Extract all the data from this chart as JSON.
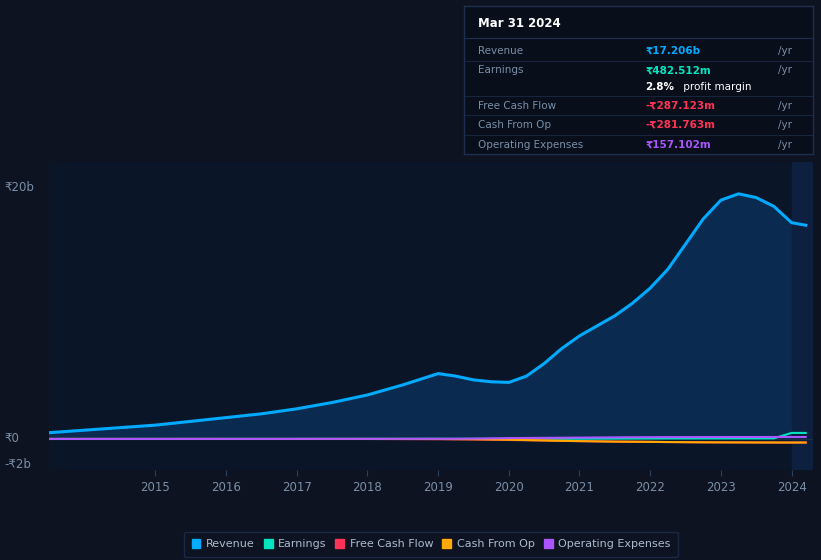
{
  "background_color": "#0d1320",
  "plot_bg_color": "#0a1628",
  "grid_color": "#1a2e4a",
  "years": [
    2013.0,
    2013.5,
    2014.0,
    2014.5,
    2015.0,
    2015.5,
    2016.0,
    2016.5,
    2017.0,
    2017.5,
    2018.0,
    2018.5,
    2019.0,
    2019.25,
    2019.5,
    2019.75,
    2020.0,
    2020.25,
    2020.5,
    2020.75,
    2021.0,
    2021.25,
    2021.5,
    2021.75,
    2022.0,
    2022.25,
    2022.5,
    2022.75,
    2023.0,
    2023.25,
    2023.5,
    2023.75,
    2024.0,
    2024.2
  ],
  "revenue": [
    0.3,
    0.5,
    0.7,
    0.9,
    1.1,
    1.4,
    1.7,
    2.0,
    2.4,
    2.9,
    3.5,
    4.3,
    5.2,
    5.0,
    4.7,
    4.55,
    4.5,
    5.0,
    6.0,
    7.2,
    8.2,
    9.0,
    9.8,
    10.8,
    12.0,
    13.5,
    15.5,
    17.5,
    19.0,
    19.5,
    19.2,
    18.5,
    17.206,
    17.0
  ],
  "earnings": [
    0.001,
    0.001,
    0.002,
    0.002,
    0.003,
    0.003,
    0.004,
    0.005,
    0.006,
    0.007,
    0.008,
    0.01,
    0.012,
    0.011,
    0.01,
    0.009,
    0.008,
    0.01,
    0.012,
    0.015,
    0.02,
    0.025,
    0.03,
    0.035,
    0.04,
    0.042,
    0.044,
    0.046,
    0.047,
    0.048,
    0.0482,
    0.0483,
    0.4825,
    0.48
  ],
  "free_cash_flow": [
    0.001,
    0.001,
    0.001,
    0.001,
    0.001,
    0.001,
    0.0,
    0.0,
    0.0,
    0.0,
    0.0,
    -0.01,
    -0.02,
    -0.03,
    -0.04,
    -0.06,
    -0.08,
    -0.1,
    -0.12,
    -0.15,
    -0.17,
    -0.19,
    -0.21,
    -0.22,
    -0.23,
    -0.245,
    -0.255,
    -0.265,
    -0.27,
    -0.275,
    -0.28,
    -0.285,
    -0.287123,
    -0.287
  ],
  "cash_from_op": [
    0.0,
    0.0,
    0.0,
    0.0,
    0.0,
    0.0,
    0.0,
    0.0,
    0.0,
    0.0,
    0.0,
    0.0,
    0.0,
    -0.01,
    -0.02,
    -0.04,
    -0.06,
    -0.09,
    -0.12,
    -0.15,
    -0.17,
    -0.19,
    -0.21,
    -0.22,
    -0.23,
    -0.245,
    -0.255,
    -0.265,
    -0.27,
    -0.274,
    -0.278,
    -0.28,
    -0.281763,
    -0.282
  ],
  "operating_expenses": [
    0.001,
    0.001,
    0.001,
    0.002,
    0.003,
    0.004,
    0.005,
    0.006,
    0.007,
    0.008,
    0.01,
    0.012,
    0.015,
    0.02,
    0.03,
    0.05,
    0.07,
    0.08,
    0.09,
    0.1,
    0.11,
    0.12,
    0.13,
    0.14,
    0.145,
    0.148,
    0.15,
    0.153,
    0.155,
    0.156,
    0.157,
    0.1571,
    0.157102,
    0.157
  ],
  "revenue_color": "#00aaff",
  "earnings_color": "#00e5c0",
  "fcf_color": "#ff3355",
  "cfo_color": "#ffaa00",
  "opex_color": "#aa55ff",
  "revenue_fill_color": "#0a2a50",
  "highlight_band_color": "#0d2040",
  "ylim": [
    -2.5,
    22.0
  ],
  "xlim_start": 2013.5,
  "xlim_end": 2024.3,
  "xtick_years": [
    2015,
    2016,
    2017,
    2018,
    2019,
    2020,
    2021,
    2022,
    2023,
    2024
  ],
  "infobox": {
    "title": "Mar 31 2024",
    "rows": [
      {
        "label": "Revenue",
        "value": "₹17.206b",
        "unit": "/yr",
        "value_color": "#00aaff",
        "bold": true,
        "separator_above": true
      },
      {
        "label": "Earnings",
        "value": "₹482.512m",
        "unit": "/yr",
        "value_color": "#00e5c0",
        "bold": true,
        "separator_above": true
      },
      {
        "label": "",
        "value": "2.8%",
        "unit": " profit margin",
        "value_color": "white",
        "bold": true,
        "unit_color": "white",
        "separator_above": false
      },
      {
        "label": "Free Cash Flow",
        "value": "-₹287.123m",
        "unit": "/yr",
        "value_color": "#ff3355",
        "bold": true,
        "separator_above": true
      },
      {
        "label": "Cash From Op",
        "value": "-₹281.763m",
        "unit": "/yr",
        "value_color": "#ff3355",
        "bold": true,
        "separator_above": true
      },
      {
        "label": "Operating Expenses",
        "value": "₹157.102m",
        "unit": "/yr",
        "value_color": "#aa55ff",
        "bold": true,
        "separator_above": true
      }
    ]
  },
  "legend_items": [
    {
      "label": "Revenue",
      "color": "#00aaff"
    },
    {
      "label": "Earnings",
      "color": "#00e5c0"
    },
    {
      "label": "Free Cash Flow",
      "color": "#ff3355"
    },
    {
      "label": "Cash From Op",
      "color": "#ffaa00"
    },
    {
      "label": "Operating Expenses",
      "color": "#aa55ff"
    }
  ]
}
